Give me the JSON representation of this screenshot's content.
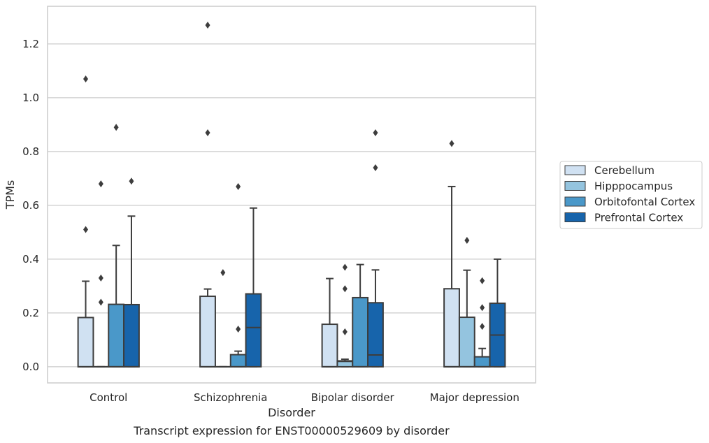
{
  "chart_data": {
    "type": "box",
    "caption": "Transcript expression for ENST00000529609 by disorder",
    "xlabel": "Disorder",
    "ylabel": "TPMs",
    "ylim": [
      -0.06,
      1.34
    ],
    "yticks": [
      "0.0",
      "0.2",
      "0.4",
      "0.6",
      "0.8",
      "1.0",
      "1.2"
    ],
    "grid": true,
    "legend_position": "right",
    "categories": [
      "Control",
      "Schizophrenia",
      "Bipolar disorder",
      "Major depression"
    ],
    "series": [
      {
        "name": "Cerebellum",
        "color": "#d0e1f2",
        "boxes": [
          {
            "q1": 0.0,
            "median": 0.0,
            "q3": 0.183,
            "whisker_low": 0.0,
            "whisker_high": 0.318,
            "outliers": [
              0.51,
              1.07
            ]
          },
          {
            "q1": 0.0,
            "median": 0.0,
            "q3": 0.262,
            "whisker_low": 0.0,
            "whisker_high": 0.289,
            "outliers": [
              0.87,
              1.27
            ]
          },
          {
            "q1": 0.0,
            "median": 0.0,
            "q3": 0.158,
            "whisker_low": 0.0,
            "whisker_high": 0.328,
            "outliers": []
          },
          {
            "q1": 0.0,
            "median": 0.0,
            "q3": 0.29,
            "whisker_low": 0.0,
            "whisker_high": 0.67,
            "outliers": [
              0.83
            ]
          }
        ]
      },
      {
        "name": "Hipppocampus",
        "color": "#94c4df",
        "boxes": [
          {
            "q1": 0.0,
            "median": 0.0,
            "q3": 0.0,
            "whisker_low": 0.0,
            "whisker_high": 0.0,
            "outliers": [
              0.24,
              0.33,
              0.68
            ]
          },
          {
            "q1": 0.0,
            "median": 0.0,
            "q3": 0.0,
            "whisker_low": 0.0,
            "whisker_high": 0.0,
            "outliers": [
              0.35
            ]
          },
          {
            "q1": 0.0,
            "median": 0.02,
            "q3": 0.022,
            "whisker_low": 0.0,
            "whisker_high": 0.028,
            "outliers": [
              0.13,
              0.29,
              0.37
            ]
          },
          {
            "q1": 0.0,
            "median": 0.0,
            "q3": 0.184,
            "whisker_low": 0.0,
            "whisker_high": 0.359,
            "outliers": [
              0.47
            ]
          }
        ]
      },
      {
        "name": "Orbitofontal Cortex",
        "color": "#4a98c9",
        "boxes": [
          {
            "q1": 0.0,
            "median": 0.0,
            "q3": 0.232,
            "whisker_low": 0.0,
            "whisker_high": 0.451,
            "outliers": [
              0.89
            ]
          },
          {
            "q1": 0.0,
            "median": 0.0,
            "q3": 0.045,
            "whisker_low": 0.0,
            "whisker_high": 0.058,
            "outliers": [
              0.14,
              0.67
            ]
          },
          {
            "q1": 0.0,
            "median": 0.0,
            "q3": 0.257,
            "whisker_low": 0.0,
            "whisker_high": 0.38,
            "outliers": []
          },
          {
            "q1": 0.0,
            "median": 0.0,
            "q3": 0.037,
            "whisker_low": 0.0,
            "whisker_high": 0.068,
            "outliers": [
              0.15,
              0.22,
              0.32
            ]
          }
        ]
      },
      {
        "name": "Prefrontal Cortex",
        "color": "#1764ab",
        "boxes": [
          {
            "q1": 0.0,
            "median": 0.0,
            "q3": 0.231,
            "whisker_low": 0.0,
            "whisker_high": 0.56,
            "outliers": [
              0.69
            ]
          },
          {
            "q1": 0.0,
            "median": 0.146,
            "q3": 0.271,
            "whisker_low": 0.0,
            "whisker_high": 0.59,
            "outliers": []
          },
          {
            "q1": 0.0,
            "median": 0.044,
            "q3": 0.238,
            "whisker_low": 0.0,
            "whisker_high": 0.36,
            "outliers": [
              0.74,
              0.87
            ]
          },
          {
            "q1": 0.0,
            "median": 0.118,
            "q3": 0.236,
            "whisker_low": 0.0,
            "whisker_high": 0.4,
            "outliers": []
          }
        ]
      }
    ]
  }
}
